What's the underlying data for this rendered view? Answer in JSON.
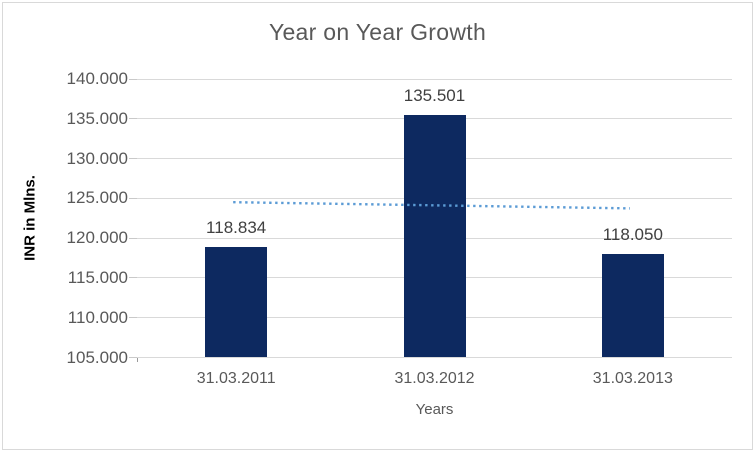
{
  "chart_data": {
    "type": "bar",
    "title": "Year on Year Growth",
    "xlabel": "Years",
    "ylabel": "INR in Mlns.",
    "categories": [
      "31.03.2011",
      "31.03.2012",
      "31.03.2013"
    ],
    "values": [
      118.834,
      135.501,
      118.05
    ],
    "data_labels": [
      "118.834",
      "135.501",
      "118.050"
    ],
    "ylim": [
      105,
      140
    ],
    "ytick_step": 5,
    "ytick_labels": [
      "140.000",
      "135.000",
      "130.000",
      "125.000",
      "120.000",
      "115.000",
      "110.000",
      "105.000"
    ],
    "grid": true,
    "legend": "none",
    "bar_color": "#0d2960",
    "trendline": {
      "kind": "linear",
      "style": "dotted",
      "color": "#5b9bd5",
      "start_value": 124.52,
      "end_value": 123.74
    },
    "colors": {
      "title": "#595959",
      "tick_labels": "#595959",
      "data_labels": "#404040",
      "gridline": "#d9d9d9",
      "chart_border": "#d9d9d9",
      "y_axis_title": "#000000",
      "x_axis_title": "#595959"
    }
  }
}
